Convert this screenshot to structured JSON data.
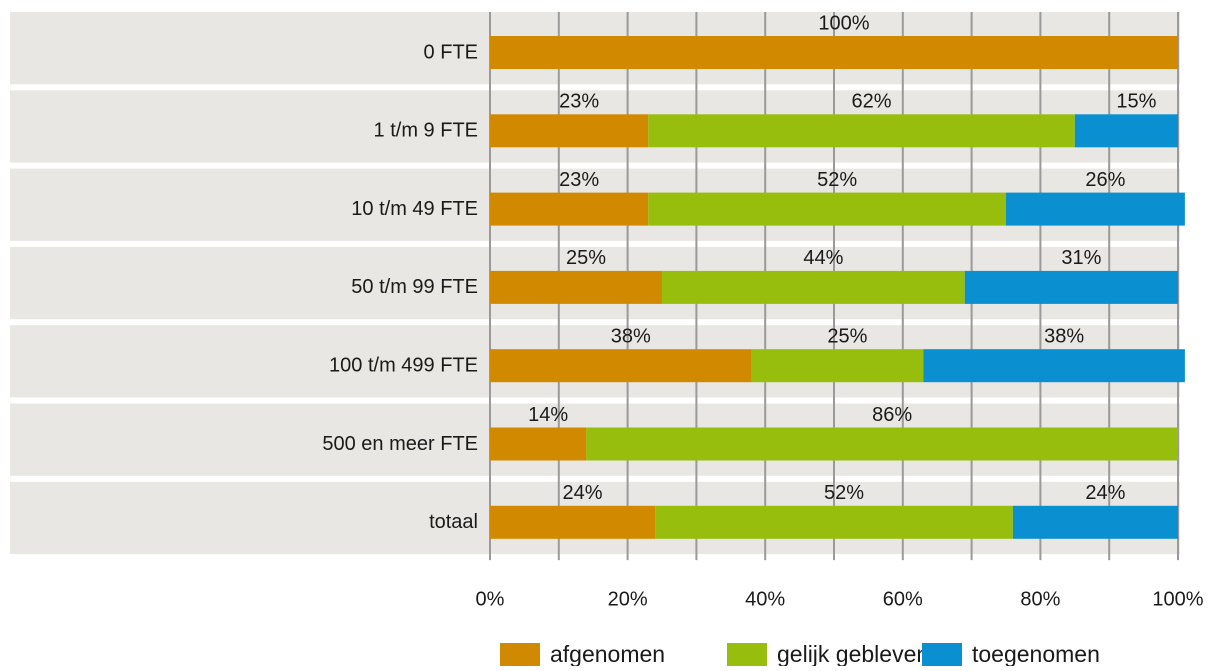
{
  "chart_data": {
    "type": "stacked_barh",
    "categories": [
      "0 FTE",
      "1 t/m 9 FTE",
      "10 t/m 49 FTE",
      "50 t/m 99 FTE",
      "100 t/m 499 FTE",
      "500 en meer FTE",
      "totaal"
    ],
    "series": [
      {
        "name": "afgenomen",
        "color": "#d18a00",
        "values": [
          100,
          23,
          23,
          25,
          38,
          14,
          24
        ],
        "value_labels": [
          "100%",
          "23%",
          "23%",
          "25%",
          "38%",
          "14%",
          "24%"
        ]
      },
      {
        "name": "gelijk gebleven",
        "color": "#97be0d",
        "values": [
          null,
          62,
          52,
          44,
          25,
          86,
          52
        ],
        "value_labels": [
          null,
          "62%",
          "52%",
          "44%",
          "25%",
          "86%",
          "52%"
        ]
      },
      {
        "name": "toegenomen",
        "color": "#0a8fd1",
        "values": [
          null,
          15,
          26,
          31,
          38,
          null,
          24
        ],
        "value_labels": [
          null,
          "15%",
          "26%",
          "31%",
          "38%",
          null,
          "24%"
        ]
      }
    ],
    "xlim": [
      0,
      100
    ],
    "xticks": [
      {
        "value": 0,
        "label": "0%"
      },
      {
        "value": 20,
        "label": "20%"
      },
      {
        "value": 40,
        "label": "40%"
      },
      {
        "value": 60,
        "label": "60%"
      },
      {
        "value": 80,
        "label": "80%"
      },
      {
        "value": 100,
        "label": "100%"
      }
    ],
    "minor_xticks": [
      10,
      30,
      50,
      70,
      90
    ],
    "grid": true,
    "legend": "bottom"
  }
}
